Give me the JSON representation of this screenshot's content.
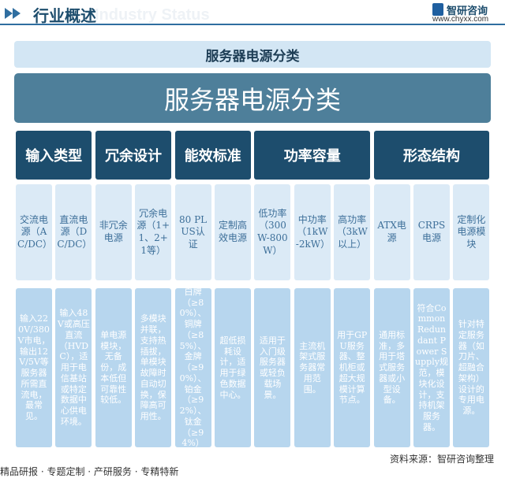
{
  "header": {
    "title": "行业概述",
    "watermark": "Industry Status",
    "brand": "智研咨询",
    "url": "www.chyxx.com"
  },
  "banner": "服务器电源分类",
  "main_title": "服务器电源分类",
  "categories": [
    {
      "label": "输入类型",
      "items": [
        {
          "name": "交流电源（AC/DC）",
          "description": "输入220V/380V市电，输出12V/5V等服务器所需直流电，最常见。"
        },
        {
          "name": "直流电源（DC/DC）",
          "description": "输入48V或高压直流（HVDC），适用于电信基站或特定数据中心供电环境。"
        }
      ]
    },
    {
      "label": "冗余设计",
      "items": [
        {
          "name": "非冗余电源",
          "description": "单电源模块，无备份，成本低但可靠性较低。"
        },
        {
          "name": "冗余电源（1+1、2+1等）",
          "description": "多模块并联，支持热插拔，单模块故障时自动切换，保障高可用性。"
        }
      ]
    },
    {
      "label": "能效标准",
      "items": [
        {
          "name": "80 PLUS认证",
          "description": "白牌（≥80%）、铜牌（≥85%）、金牌（≥90%）、铂金（≥92%）、钛金（≥94%）"
        },
        {
          "name": "定制高效电源",
          "description": "超低损耗设计，适用于绿色数据中心。"
        }
      ]
    },
    {
      "label": "功率容量",
      "items": [
        {
          "name": "低功率（300W-800W）",
          "description": "适用于入门级服务器或轻负载场景。"
        },
        {
          "name": "中功率（1kW-2kW）",
          "description": "主流机架式服务器常用范围。"
        },
        {
          "name": "高功率（3kW以上）",
          "description": "用于GPU服务器、整机柜或超大规模计算节点。"
        }
      ]
    },
    {
      "label": "形态结构",
      "items": [
        {
          "name": "ATX电源",
          "description": "通用标准，多用于塔式服务器或小型设备。"
        },
        {
          "name": "CRPS电源",
          "description": "符合Common Redundant Power Supply规范，模块化设计，支持机架服务器。"
        },
        {
          "name": "定制化电源模块",
          "description": "针对特定服务器（如刀片、超融合架构）设计的专用电源。"
        }
      ]
    }
  ],
  "footer": {
    "services": "精品研报 · 专题定制 · 产研服务 · 专精特新",
    "source": "资料来源：智研咨询整理"
  }
}
